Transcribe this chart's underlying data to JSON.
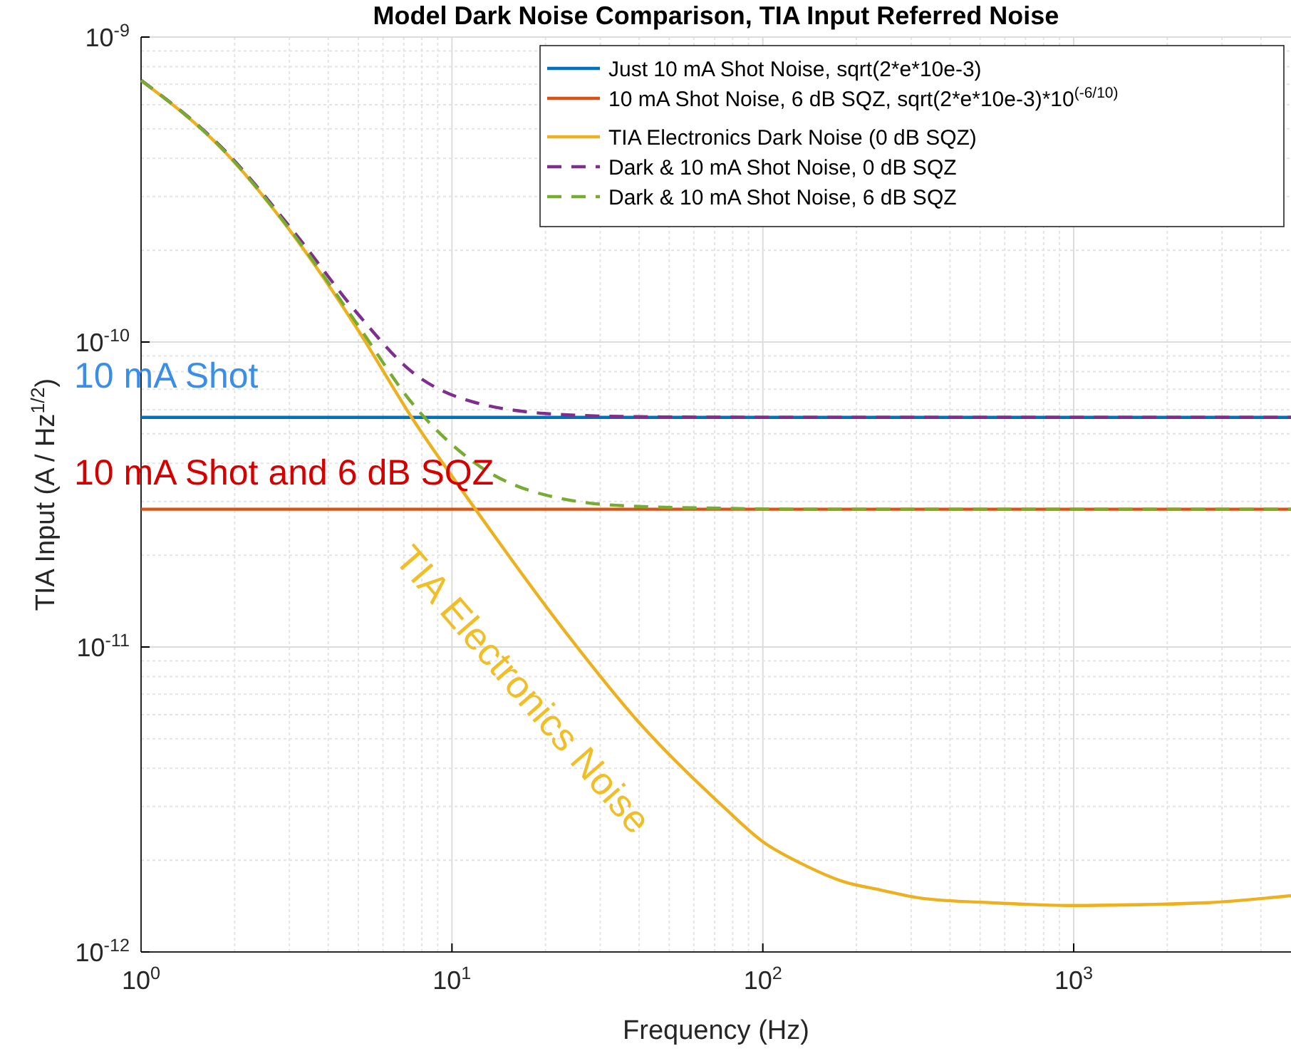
{
  "chart_data": {
    "type": "line",
    "title": "Model Dark Noise Comparison, TIA Input Referred Noise",
    "xlabel": "Frequency (Hz)",
    "ylabel": "TIA Input (A / Hz$^{1/2}$)",
    "log": "xy",
    "grid": true,
    "legend": "top right",
    "xlim": [
      1,
      5000
    ],
    "ylim": [
      1e-12,
      1e-09
    ],
    "xticks": [
      {
        "value": 1,
        "label": "10$^{0}$"
      },
      {
        "value": 10,
        "label": "10$^{1}$"
      },
      {
        "value": 100,
        "label": "10$^{2}$"
      },
      {
        "value": 1000,
        "label": "10$^{3}$"
      }
    ],
    "yticks": [
      {
        "value": 1e-12,
        "label": "10$^{-12}$"
      },
      {
        "value": 1e-11,
        "label": "10$^{-11}$"
      },
      {
        "value": 1e-10,
        "label": "10$^{-10}$"
      },
      {
        "value": 1e-09,
        "label": "10$^{-9}$"
      }
    ],
    "series": [
      {
        "name": "Just 10 mA Shot Noise, sqrt(2*e*10e-3)",
        "color": "#0072bd",
        "line_style": "solid",
        "x": [
          1,
          5000
        ],
        "values": [
          5.66e-11,
          5.66e-11
        ]
      },
      {
        "name": "10 mA Shot Noise, 6 dB SQZ, sqrt(2*e*10e-3)*10$^{(-6/10)}$",
        "color": "#d95319",
        "line_style": "solid",
        "x": [
          1,
          5000
        ],
        "values": [
          2.83e-11,
          2.83e-11
        ]
      },
      {
        "name": "TIA Electronics Dark Noise (0 dB SQZ)",
        "color": "#edb120",
        "line_style": "solid",
        "x": [
          1,
          1.84,
          3.1,
          5.0,
          7.42,
          11.9,
          23.5,
          39.7,
          74.5,
          100,
          133,
          182,
          237,
          324,
          547,
          1000,
          2640,
          5000
        ],
        "values": [
          7.2e-10,
          4.25e-10,
          2.23e-10,
          1.09e-10,
          5.66e-11,
          2.83e-11,
          1.1e-11,
          5.7e-12,
          3e-12,
          2.3e-12,
          1.95e-12,
          1.7e-12,
          1.6e-12,
          1.5e-12,
          1.45e-12,
          1.42e-12,
          1.45e-12,
          1.53e-12
        ]
      },
      {
        "name": "Dark & 10 mA Shot Noise, 0 dB SQZ",
        "color": "#7e2f8e",
        "line_style": "dashed",
        "x": [
          1,
          1.84,
          3.1,
          5.0,
          7.42,
          11.9,
          23.5,
          39.7,
          74.5,
          133,
          5000
        ],
        "values": [
          7.22e-10,
          4.29e-10,
          2.3e-10,
          1.23e-10,
          8e-11,
          6.33e-11,
          5.77e-11,
          5.69e-11,
          5.67e-11,
          5.66e-11,
          5.66e-11
        ]
      },
      {
        "name": "Dark & 10 mA Shot Noise, 6 dB SQZ",
        "color": "#77ac30",
        "line_style": "dashed",
        "x": [
          1,
          1.84,
          3.1,
          5.0,
          7.42,
          11.9,
          23.5,
          39.7,
          74.5,
          133,
          5000
        ],
        "values": [
          7.21e-10,
          4.26e-10,
          2.25e-10,
          1.13e-10,
          6.33e-11,
          4e-11,
          3.04e-11,
          2.89e-11,
          2.85e-11,
          2.83e-11,
          2.83e-11
        ]
      }
    ],
    "annotations": [
      "10 mA Shot",
      "10 mA Shot and 6 dB SQZ",
      "TIA Electronics Noise"
    ]
  }
}
